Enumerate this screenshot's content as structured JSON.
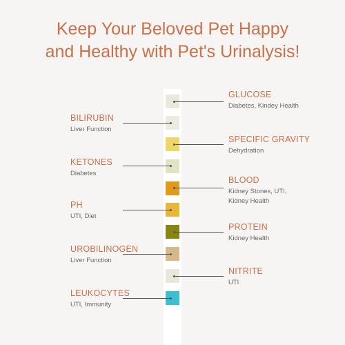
{
  "headline": {
    "line1": "Keep Your Beloved Pet Happy",
    "line2": "and Healthy with Pet's Urinalysis!"
  },
  "pads": [
    {
      "name": "GLUCOSE",
      "desc": [
        "Diabetes, Kindey Health"
      ],
      "color": "#e9e8dc"
    },
    {
      "name": "BILIRUBIN",
      "desc": [
        "Liver Function"
      ],
      "color": "#ecebe0"
    },
    {
      "name": "SPECIFIC GRAVITY",
      "desc": [
        "Dehydration"
      ],
      "color": "#f0d56a"
    },
    {
      "name": "KETONES",
      "desc": [
        "Diabetes"
      ],
      "color": "#e1e4c4"
    },
    {
      "name": "BLOOD",
      "desc": [
        "Kidney Stones, UTI,",
        "Kidney Health"
      ],
      "color": "#e39a1b"
    },
    {
      "name": "PH",
      "desc": [
        "UTI, Diet"
      ],
      "color": "#eab63a"
    },
    {
      "name": "PROTEIN",
      "desc": [
        "Kidney Health"
      ],
      "color": "#8a8410"
    },
    {
      "name": "UROBILINOGEN",
      "desc": [
        "Liver Function"
      ],
      "color": "#d8b78b"
    },
    {
      "name": "NITRITE",
      "desc": [
        "UTI"
      ],
      "color": "#e8e7dc"
    },
    {
      "name": "LEUKOCYTES",
      "desc": [
        "UTI, Immunity"
      ],
      "color": "#3cbfcf"
    }
  ]
}
